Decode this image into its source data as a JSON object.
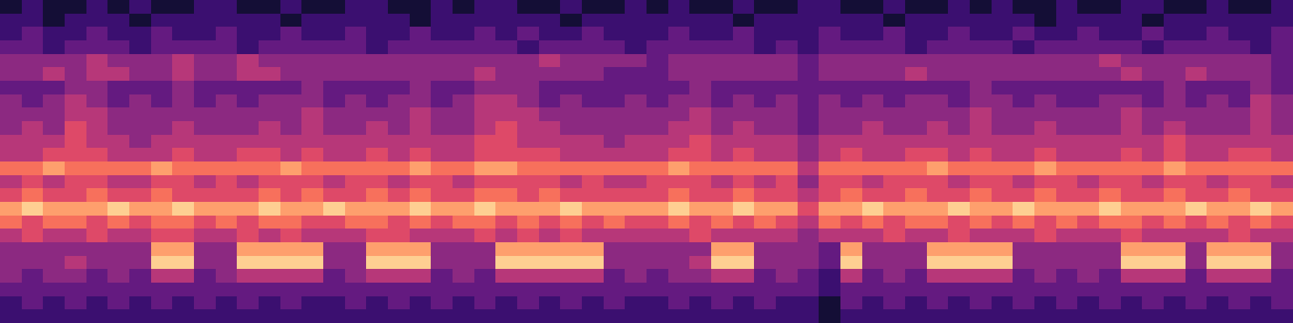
{
  "chart_data": {
    "type": "heatmap",
    "tick_labels": false,
    "zlim": [
      0,
      10
    ],
    "cells": [
      [
        1,
        2,
        1,
        1,
        2,
        1,
        2,
        1,
        1,
        2,
        2,
        1,
        1,
        2,
        1,
        1,
        2,
        2,
        1,
        1,
        2,
        1,
        2,
        2,
        1,
        1,
        2,
        1,
        1,
        2,
        1,
        2,
        1,
        1,
        2,
        1,
        1,
        2,
        2,
        1,
        1,
        2,
        1,
        1,
        2,
        1,
        2,
        1,
        1,
        2,
        1,
        1,
        2,
        2,
        1,
        1,
        2,
        1,
        1,
        2
      ],
      [
        2,
        2,
        1,
        2,
        2,
        2,
        1,
        2,
        2,
        2,
        2,
        2,
        2,
        1,
        2,
        2,
        2,
        2,
        2,
        1,
        2,
        2,
        2,
        2,
        2,
        2,
        1,
        2,
        2,
        2,
        2,
        2,
        2,
        2,
        1,
        2,
        2,
        2,
        2,
        2,
        2,
        1,
        2,
        2,
        2,
        2,
        2,
        2,
        1,
        2,
        2,
        2,
        2,
        1,
        2,
        2,
        2,
        2,
        2,
        2
      ],
      [
        2,
        3,
        2,
        2,
        3,
        2,
        2,
        3,
        2,
        2,
        3,
        2,
        2,
        3,
        2,
        2,
        3,
        2,
        2,
        3,
        2,
        2,
        3,
        2,
        3,
        2,
        2,
        3,
        2,
        2,
        2,
        3,
        2,
        2,
        3,
        2,
        2,
        2,
        3,
        2,
        2,
        3,
        2,
        2,
        3,
        2,
        2,
        3,
        2,
        2,
        3,
        2,
        2,
        3,
        2,
        2,
        3,
        2,
        2,
        3
      ],
      [
        3,
        3,
        2,
        3,
        3,
        3,
        2,
        3,
        3,
        3,
        3,
        2,
        3,
        3,
        3,
        3,
        3,
        2,
        3,
        3,
        3,
        3,
        3,
        3,
        2,
        3,
        3,
        3,
        3,
        2,
        3,
        3,
        3,
        3,
        3,
        2,
        3,
        2,
        3,
        3,
        3,
        3,
        2,
        3,
        3,
        3,
        3,
        2,
        3,
        3,
        3,
        3,
        3,
        2,
        3,
        3,
        3,
        3,
        2,
        3
      ],
      [
        4,
        4,
        4,
        4,
        5,
        4,
        4,
        4,
        5,
        4,
        4,
        5,
        4,
        4,
        4,
        4,
        4,
        4,
        4,
        4,
        4,
        4,
        4,
        4,
        4,
        5,
        4,
        4,
        4,
        4,
        3,
        4,
        4,
        4,
        4,
        4,
        4,
        3,
        4,
        4,
        4,
        4,
        4,
        4,
        4,
        4,
        4,
        4,
        4,
        4,
        4,
        5,
        4,
        4,
        4,
        4,
        4,
        4,
        4,
        3
      ],
      [
        4,
        4,
        5,
        4,
        5,
        5,
        4,
        4,
        5,
        4,
        4,
        5,
        5,
        4,
        4,
        4,
        4,
        4,
        4,
        4,
        4,
        4,
        5,
        4,
        4,
        4,
        4,
        4,
        3,
        3,
        3,
        4,
        4,
        4,
        4,
        4,
        4,
        3,
        4,
        4,
        4,
        4,
        5,
        4,
        4,
        4,
        4,
        4,
        4,
        4,
        4,
        4,
        5,
        4,
        4,
        5,
        4,
        4,
        4,
        3
      ],
      [
        3,
        3,
        3,
        4,
        4,
        3,
        3,
        3,
        4,
        3,
        3,
        3,
        3,
        3,
        4,
        3,
        3,
        3,
        3,
        4,
        3,
        3,
        4,
        4,
        4,
        3,
        3,
        3,
        3,
        3,
        3,
        3,
        4,
        3,
        3,
        3,
        3,
        3,
        3,
        3,
        3,
        3,
        3,
        3,
        3,
        4,
        3,
        3,
        3,
        3,
        3,
        3,
        3,
        3,
        4,
        3,
        3,
        3,
        4,
        3
      ],
      [
        4,
        3,
        4,
        5,
        4,
        3,
        4,
        3,
        4,
        3,
        4,
        3,
        4,
        4,
        4,
        3,
        4,
        3,
        4,
        4,
        3,
        4,
        5,
        5,
        4,
        3,
        4,
        3,
        3,
        4,
        3,
        4,
        4,
        3,
        4,
        3,
        4,
        3,
        4,
        3,
        4,
        3,
        4,
        4,
        3,
        4,
        4,
        3,
        4,
        3,
        3,
        4,
        4,
        3,
        4,
        3,
        4,
        3,
        5,
        4
      ],
      [
        4,
        4,
        4,
        5,
        5,
        4,
        4,
        4,
        4,
        4,
        4,
        4,
        4,
        4,
        5,
        4,
        4,
        4,
        4,
        5,
        4,
        4,
        5,
        5,
        5,
        4,
        4,
        4,
        4,
        4,
        4,
        4,
        5,
        4,
        4,
        4,
        4,
        3,
        4,
        4,
        4,
        4,
        4,
        4,
        4,
        5,
        4,
        4,
        4,
        4,
        4,
        4,
        5,
        4,
        4,
        4,
        4,
        4,
        5,
        4
      ],
      [
        4,
        5,
        4,
        6,
        5,
        4,
        4,
        4,
        5,
        4,
        4,
        4,
        5,
        4,
        5,
        4,
        4,
        5,
        4,
        5,
        4,
        4,
        5,
        6,
        5,
        5,
        4,
        4,
        4,
        4,
        4,
        5,
        5,
        4,
        5,
        4,
        4,
        3,
        4,
        4,
        5,
        4,
        4,
        5,
        4,
        5,
        4,
        4,
        5,
        4,
        4,
        4,
        5,
        4,
        5,
        4,
        4,
        4,
        5,
        4
      ],
      [
        5,
        5,
        5,
        6,
        5,
        5,
        4,
        5,
        5,
        5,
        5,
        5,
        5,
        5,
        5,
        5,
        5,
        5,
        5,
        5,
        5,
        5,
        6,
        6,
        5,
        5,
        5,
        5,
        4,
        5,
        5,
        5,
        6,
        5,
        5,
        5,
        5,
        4,
        5,
        5,
        5,
        5,
        5,
        5,
        5,
        5,
        5,
        5,
        5,
        5,
        5,
        5,
        5,
        5,
        6,
        5,
        5,
        5,
        5,
        5
      ],
      [
        5,
        5,
        6,
        6,
        6,
        5,
        5,
        5,
        6,
        5,
        5,
        6,
        6,
        5,
        6,
        5,
        5,
        6,
        5,
        6,
        5,
        5,
        6,
        6,
        6,
        6,
        5,
        5,
        5,
        5,
        5,
        6,
        6,
        5,
        6,
        5,
        5,
        4,
        5,
        6,
        5,
        5,
        6,
        6,
        5,
        6,
        5,
        5,
        6,
        5,
        5,
        5,
        6,
        5,
        6,
        5,
        5,
        6,
        6,
        5
      ],
      [
        7,
        7,
        8,
        7,
        7,
        7,
        7,
        8,
        7,
        7,
        7,
        7,
        7,
        8,
        7,
        7,
        7,
        7,
        7,
        8,
        7,
        7,
        8,
        8,
        7,
        7,
        7,
        7,
        7,
        7,
        7,
        8,
        7,
        7,
        7,
        7,
        7,
        5,
        7,
        7,
        7,
        7,
        7,
        8,
        7,
        7,
        7,
        7,
        8,
        7,
        7,
        7,
        7,
        7,
        8,
        7,
        7,
        7,
        7,
        7
      ],
      [
        5,
        6,
        5,
        6,
        6,
        5,
        5,
        6,
        6,
        5,
        6,
        5,
        6,
        6,
        6,
        5,
        6,
        6,
        5,
        6,
        6,
        5,
        6,
        6,
        6,
        6,
        5,
        6,
        5,
        5,
        6,
        6,
        6,
        5,
        6,
        5,
        6,
        4,
        6,
        6,
        5,
        6,
        6,
        6,
        5,
        6,
        6,
        5,
        6,
        6,
        5,
        6,
        6,
        5,
        6,
        6,
        5,
        6,
        6,
        5
      ],
      [
        6,
        7,
        6,
        6,
        7,
        6,
        6,
        7,
        6,
        6,
        6,
        6,
        7,
        6,
        7,
        6,
        6,
        7,
        6,
        7,
        6,
        6,
        7,
        7,
        6,
        7,
        6,
        6,
        6,
        6,
        6,
        7,
        6,
        6,
        7,
        6,
        6,
        5,
        6,
        7,
        6,
        6,
        7,
        6,
        6,
        7,
        6,
        6,
        7,
        6,
        6,
        7,
        6,
        6,
        7,
        6,
        6,
        7,
        6,
        6
      ],
      [
        8,
        9,
        8,
        8,
        8,
        9,
        8,
        8,
        9,
        8,
        8,
        8,
        9,
        8,
        8,
        9,
        8,
        8,
        8,
        9,
        8,
        8,
        9,
        8,
        8,
        8,
        9,
        8,
        8,
        8,
        8,
        9,
        8,
        8,
        9,
        8,
        8,
        6,
        8,
        8,
        9,
        8,
        8,
        8,
        9,
        8,
        8,
        9,
        8,
        8,
        8,
        9,
        8,
        8,
        8,
        9,
        8,
        8,
        9,
        8
      ],
      [
        7,
        6,
        7,
        7,
        6,
        7,
        6,
        7,
        7,
        6,
        7,
        6,
        7,
        7,
        6,
        6,
        7,
        7,
        6,
        7,
        6,
        7,
        7,
        6,
        7,
        6,
        7,
        6,
        7,
        6,
        6,
        7,
        6,
        7,
        6,
        7,
        6,
        5,
        7,
        6,
        7,
        6,
        7,
        7,
        6,
        7,
        6,
        7,
        6,
        7,
        6,
        7,
        7,
        6,
        7,
        6,
        7,
        6,
        7,
        6
      ],
      [
        5,
        6,
        5,
        5,
        6,
        5,
        5,
        6,
        6,
        5,
        5,
        6,
        5,
        6,
        5,
        5,
        5,
        6,
        6,
        5,
        5,
        5,
        6,
        5,
        6,
        5,
        6,
        5,
        5,
        5,
        5,
        5,
        6,
        5,
        5,
        5,
        5,
        4,
        5,
        5,
        5,
        6,
        5,
        5,
        6,
        5,
        5,
        5,
        6,
        5,
        5,
        5,
        6,
        5,
        5,
        5,
        5,
        6,
        5,
        5
      ],
      [
        4,
        4,
        4,
        4,
        4,
        4,
        4,
        8,
        8,
        4,
        4,
        8,
        8,
        8,
        8,
        4,
        4,
        8,
        8,
        8,
        4,
        4,
        4,
        8,
        8,
        8,
        8,
        8,
        4,
        4,
        4,
        4,
        4,
        8,
        8,
        4,
        4,
        4,
        3,
        8,
        4,
        4,
        4,
        8,
        8,
        8,
        8,
        4,
        4,
        4,
        4,
        4,
        8,
        8,
        8,
        4,
        8,
        8,
        8,
        4
      ],
      [
        4,
        4,
        4,
        5,
        4,
        4,
        4,
        9,
        9,
        4,
        4,
        9,
        9,
        9,
        9,
        4,
        4,
        9,
        9,
        9,
        4,
        4,
        4,
        9,
        9,
        9,
        9,
        9,
        4,
        4,
        4,
        4,
        5,
        9,
        9,
        4,
        4,
        4,
        3,
        9,
        4,
        4,
        4,
        9,
        9,
        9,
        9,
        4,
        4,
        4,
        4,
        4,
        9,
        9,
        9,
        4,
        9,
        9,
        9,
        4
      ],
      [
        4,
        3,
        4,
        4,
        3,
        4,
        3,
        5,
        5,
        3,
        4,
        5,
        5,
        5,
        5,
        3,
        4,
        5,
        5,
        5,
        3,
        4,
        3,
        5,
        5,
        5,
        5,
        5,
        3,
        4,
        3,
        4,
        4,
        5,
        5,
        3,
        4,
        3,
        2,
        5,
        3,
        4,
        3,
        5,
        5,
        5,
        5,
        3,
        4,
        3,
        4,
        3,
        5,
        5,
        5,
        3,
        5,
        5,
        5,
        3
      ],
      [
        3,
        3,
        3,
        3,
        3,
        3,
        3,
        3,
        3,
        3,
        3,
        3,
        3,
        3,
        3,
        3,
        3,
        3,
        3,
        3,
        3,
        3,
        3,
        3,
        3,
        3,
        3,
        3,
        3,
        3,
        3,
        3,
        3,
        3,
        3,
        3,
        3,
        3,
        2,
        3,
        3,
        3,
        3,
        3,
        3,
        3,
        3,
        3,
        3,
        3,
        3,
        3,
        3,
        3,
        3,
        3,
        3,
        3,
        3,
        3
      ],
      [
        2,
        3,
        2,
        3,
        2,
        3,
        2,
        3,
        2,
        3,
        2,
        3,
        2,
        3,
        2,
        2,
        3,
        2,
        3,
        2,
        3,
        2,
        3,
        2,
        3,
        2,
        3,
        2,
        3,
        2,
        2,
        3,
        2,
        3,
        2,
        3,
        2,
        2,
        1,
        3,
        2,
        3,
        2,
        3,
        2,
        3,
        2,
        3,
        2,
        3,
        2,
        3,
        2,
        3,
        2,
        3,
        2,
        3,
        2,
        3
      ],
      [
        2,
        2,
        2,
        2,
        2,
        2,
        2,
        2,
        2,
        2,
        2,
        2,
        2,
        2,
        2,
        2,
        2,
        2,
        2,
        2,
        2,
        2,
        2,
        2,
        2,
        2,
        2,
        2,
        2,
        2,
        2,
        2,
        2,
        2,
        2,
        2,
        2,
        2,
        1,
        2,
        2,
        2,
        2,
        2,
        2,
        2,
        2,
        2,
        2,
        2,
        2,
        2,
        2,
        2,
        2,
        2,
        2,
        2,
        2,
        2
      ]
    ]
  }
}
